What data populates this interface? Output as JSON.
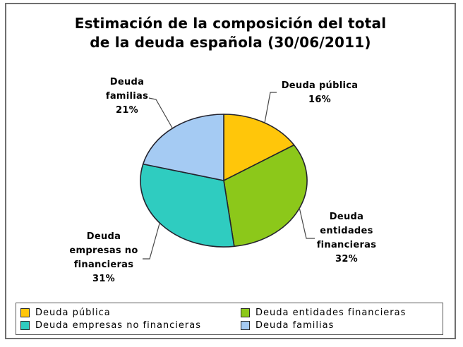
{
  "chart_data": {
    "type": "pie",
    "title": "Estimación de la composición del total\nde la deuda española (30/06/2011)",
    "categories": [
      "Deuda pública",
      "Deuda entidades financieras",
      "Deuda empresas no financieras",
      "Deuda familias"
    ],
    "values": [
      16,
      32,
      31,
      21
    ],
    "unit": "%",
    "colors": [
      "#FFC60A",
      "#8CC81A",
      "#2FCCC0",
      "#A5CBF3"
    ],
    "outline_color": "#23232e",
    "start_angle": "12-o-clock, clockwise",
    "legend_position": "bottom",
    "callouts": [
      {
        "text": "Deuda pública\n16%"
      },
      {
        "text": "Deuda\nentidades\nfinancieras\n32%"
      },
      {
        "text": "Deuda\nempresas no\nfinancieras\n31%"
      },
      {
        "text": "Deuda\nfamilias\n21%"
      }
    ]
  }
}
